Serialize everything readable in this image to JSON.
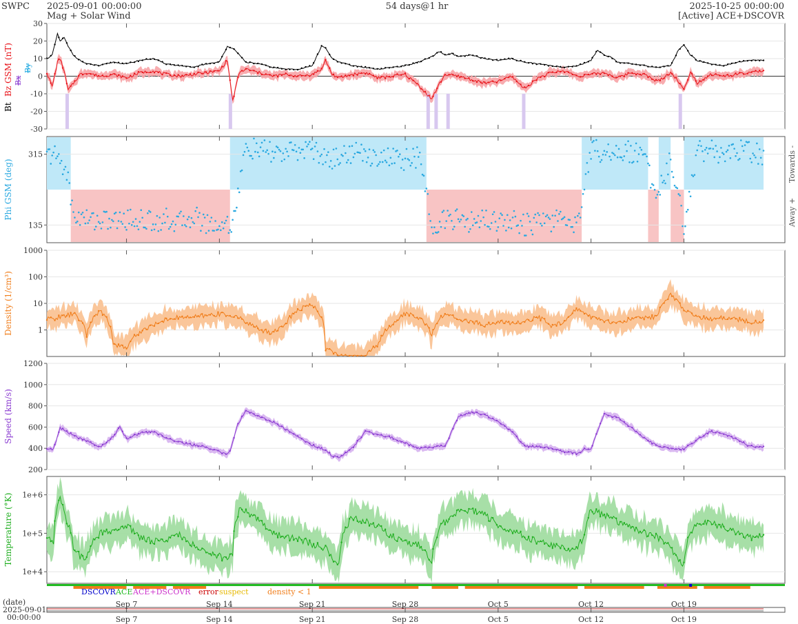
{
  "header": {
    "org": "SWPC",
    "start": "2025-09-01 00:00:00",
    "subtitle": "Mag + Solar Wind",
    "span": "54 days@1 hr",
    "end": "2025-10-25 00:00:00",
    "source": "[Active] ACE+DSCOVR"
  },
  "colors": {
    "bt": "#000000",
    "bz": "#e8141a",
    "bx": "#8a3bd1",
    "by": "#1aa7e0",
    "phi": "#29a8e0",
    "phi_away_fill": "#f8c4c4",
    "phi_towards_fill": "#bfe8f8",
    "density": "#f07d1a",
    "density_band": "#f9c08f",
    "speed": "#8a3bd1",
    "speed_band": "#d6b1ef",
    "temp": "#1fae1f",
    "temp_band": "#9ddc9d",
    "dscovr": "#0000cc",
    "ace": "#22bb22",
    "both": "#cc33cc",
    "error": "#cc0000",
    "suspect": "#e6b800",
    "low_density": "#f07d1a"
  },
  "x_axis": {
    "days": 54,
    "tick_days": [
      6,
      13,
      20,
      27,
      34,
      41,
      48
    ],
    "tick_labels": [
      "Sep 7",
      "Sep 14",
      "Sep 21",
      "Sep 28",
      "Oct 5",
      "Oct 12",
      "Oct 19"
    ],
    "date_label": "(date)",
    "date_start": "2025-09-01",
    "time_start": "00:00:00"
  },
  "source_legend": {
    "dscovr": "DSCOVR",
    "ace": "ACE",
    "both": "ACE+DSCOVR",
    "error": "error",
    "suspect": "suspect",
    "low_density": "density < 1"
  },
  "chart_data": [
    {
      "type": "line",
      "panel": "mag",
      "ylabel_parts": [
        "Bt",
        "Bz GSM (nT)",
        "Bx",
        "By"
      ],
      "ylim": [
        -30,
        30
      ],
      "yticks": [
        -30,
        -20,
        -10,
        0,
        10,
        20,
        30
      ],
      "series": [
        {
          "name": "Bt",
          "x_days": [
            0,
            0.4,
            0.8,
            1,
            1.3,
            1.6,
            2,
            2.5,
            3,
            4,
            5,
            6,
            7,
            8,
            9,
            10,
            11,
            12,
            13,
            13.6,
            14,
            14.5,
            15,
            16,
            17,
            18,
            19,
            20,
            20.7,
            21,
            21.5,
            22,
            23,
            24,
            25,
            26,
            27,
            28,
            29,
            29.6,
            30,
            30.5,
            31,
            32,
            33,
            34,
            35,
            36,
            37,
            38,
            39,
            40,
            41,
            41.5,
            42,
            42.5,
            43,
            44,
            45,
            46,
            47,
            47.6,
            48,
            48.5,
            49,
            50,
            51,
            52,
            53,
            54
          ],
          "values": [
            10,
            12,
            24,
            20,
            22,
            17,
            12,
            9,
            7,
            6,
            8,
            7,
            9,
            10,
            7,
            6,
            5,
            7,
            8,
            17,
            16,
            12,
            8,
            7,
            5,
            4,
            4,
            6,
            17,
            16,
            10,
            8,
            6,
            5,
            4,
            5,
            6,
            8,
            11,
            14,
            12,
            13,
            11,
            12,
            10,
            9,
            10,
            8,
            7,
            6,
            5,
            6,
            9,
            15,
            12,
            11,
            8,
            7,
            6,
            5,
            6,
            15,
            18,
            12,
            9,
            7,
            6,
            8,
            9,
            9
          ]
        },
        {
          "name": "Bz GSM",
          "x_days": [
            0,
            0.4,
            0.8,
            1,
            1.3,
            1.6,
            2,
            2.5,
            3,
            4,
            5,
            6,
            7,
            8,
            9,
            10,
            11,
            12,
            13,
            13.6,
            14,
            14.5,
            15,
            16,
            17,
            18,
            19,
            20,
            20.7,
            21,
            21.5,
            22,
            23,
            24,
            25,
            26,
            27,
            28,
            28.6,
            29,
            29.6,
            30,
            31,
            32,
            33,
            34,
            35,
            36,
            37,
            38,
            39,
            40,
            41,
            42,
            43,
            44,
            45,
            46,
            47,
            47.5,
            48,
            48.5,
            49,
            50,
            51,
            52,
            53,
            54
          ],
          "values": [
            2,
            -6,
            8,
            10,
            3,
            -8,
            -4,
            1,
            2,
            0,
            1,
            -1,
            2,
            3,
            1,
            0,
            1,
            2,
            3,
            9,
            -14,
            2,
            4,
            2,
            0,
            1,
            0,
            1,
            4,
            9,
            1,
            -1,
            1,
            2,
            -1,
            0,
            1,
            -5,
            -10,
            -13,
            -4,
            1,
            0,
            -2,
            -4,
            -3,
            0,
            -7,
            -1,
            2,
            3,
            0,
            1,
            2,
            -1,
            2,
            1,
            -3,
            2,
            -2,
            -8,
            3,
            -4,
            1,
            0,
            1,
            2,
            3
          ]
        }
      ]
    },
    {
      "type": "scatter",
      "panel": "phi",
      "ylabel": "Phi GSM (deg)",
      "ylim": [
        90,
        360
      ],
      "yticks": [
        135,
        315
      ],
      "side_labels": [
        "Towards -",
        "Away +"
      ],
      "sectors": [
        {
          "from_day": 0,
          "to_day": 1.8,
          "polarity": "towards"
        },
        {
          "from_day": 1.8,
          "to_day": 13.8,
          "polarity": "away"
        },
        {
          "from_day": 13.8,
          "to_day": 28.6,
          "polarity": "towards"
        },
        {
          "from_day": 28.6,
          "to_day": 40.3,
          "polarity": "away"
        },
        {
          "from_day": 40.3,
          "to_day": 45.3,
          "polarity": "towards"
        },
        {
          "from_day": 45.3,
          "to_day": 46.1,
          "polarity": "away"
        },
        {
          "from_day": 46.1,
          "to_day": 47.0,
          "polarity": "towards"
        },
        {
          "from_day": 47.0,
          "to_day": 48.0,
          "polarity": "away"
        },
        {
          "from_day": 48.0,
          "to_day": 54,
          "polarity": "towards"
        }
      ],
      "series": [
        {
          "name": "Phi GSM",
          "x_days": [
            0,
            0.5,
            1,
            1.5,
            2,
            3,
            4,
            5,
            6,
            7,
            8,
            9,
            10,
            11,
            12,
            13,
            14,
            15,
            16,
            17,
            18,
            19,
            20,
            21,
            22,
            23,
            24,
            25,
            26,
            27,
            28,
            29,
            30,
            31,
            32,
            33,
            34,
            35,
            36,
            37,
            38,
            39,
            40,
            41,
            42,
            43,
            44,
            45,
            46,
            47,
            48,
            49,
            50,
            51,
            52,
            53,
            54
          ],
          "values": [
            310,
            315,
            300,
            270,
            160,
            150,
            148,
            145,
            150,
            148,
            145,
            150,
            140,
            160,
            140,
            135,
            140,
            330,
            325,
            320,
            315,
            325,
            330,
            300,
            310,
            320,
            315,
            310,
            305,
            300,
            310,
            140,
            145,
            150,
            140,
            155,
            145,
            150,
            135,
            140,
            145,
            150,
            140,
            330,
            320,
            325,
            320,
            315,
            200,
            310,
            135,
            320,
            330,
            310,
            325,
            320,
            315
          ]
        }
      ]
    },
    {
      "type": "line",
      "panel": "density",
      "ylabel": "Density (1/cm³)",
      "yscale": "log",
      "ylim": [
        0.1,
        1000
      ],
      "yticks": [
        1,
        10,
        100,
        1000
      ],
      "ytick_labels": [
        "1",
        "10",
        "100",
        "1000"
      ],
      "series": [
        {
          "name": "Density",
          "x_days": [
            0,
            1,
            2,
            3,
            4,
            5,
            6,
            7,
            8,
            9,
            10,
            11,
            12,
            13,
            14,
            15,
            16,
            17,
            18,
            19,
            20,
            21,
            22,
            23,
            24,
            25,
            26,
            27,
            28,
            29,
            30,
            31,
            32,
            33,
            34,
            35,
            36,
            37,
            38,
            39,
            40,
            41,
            42,
            43,
            44,
            45,
            46,
            47,
            48,
            49,
            50,
            51,
            52,
            53,
            54
          ],
          "values": [
            2.5,
            3,
            4,
            0.6,
            5,
            0.3,
            0.2,
            0.8,
            1.5,
            2.5,
            3,
            3,
            3.5,
            4,
            3.5,
            2,
            1,
            0.8,
            1.5,
            6,
            9,
            0.2,
            0.1,
            0.1,
            0.1,
            0.3,
            1.5,
            4,
            3,
            0.5,
            4,
            2.5,
            2,
            1.5,
            2,
            1.8,
            2,
            3,
            1.5,
            2,
            6,
            3,
            2,
            2,
            2.5,
            3,
            3,
            20,
            5,
            3,
            2.5,
            3,
            2.5,
            2,
            2
          ]
        }
      ]
    },
    {
      "type": "line",
      "panel": "speed",
      "ylabel": "Speed (km/s)",
      "ylim": [
        200,
        1200
      ],
      "yticks": [
        200,
        400,
        600,
        800,
        1000,
        1200
      ],
      "series": [
        {
          "name": "Speed",
          "x_days": [
            0,
            0.5,
            1,
            1.5,
            2,
            3,
            4,
            5,
            5.5,
            6,
            7,
            8,
            9,
            10,
            11,
            12,
            13,
            13.5,
            13.8,
            14.3,
            15,
            16,
            17,
            18,
            19,
            20,
            21,
            21.5,
            22,
            23,
            24,
            25,
            26,
            27,
            28,
            29,
            29.5,
            30,
            31,
            32,
            33,
            34,
            35,
            36,
            37,
            38,
            39,
            40,
            40.5,
            41,
            42,
            43,
            44,
            45,
            46,
            47,
            48,
            49,
            50,
            51,
            52,
            53,
            54
          ],
          "values": [
            400,
            390,
            590,
            560,
            520,
            470,
            410,
            510,
            600,
            490,
            540,
            560,
            500,
            460,
            430,
            410,
            370,
            340,
            370,
            600,
            760,
            700,
            650,
            580,
            500,
            430,
            380,
            330,
            310,
            400,
            560,
            530,
            500,
            450,
            400,
            410,
            420,
            420,
            700,
            740,
            720,
            650,
            560,
            420,
            420,
            400,
            370,
            350,
            390,
            400,
            720,
            690,
            600,
            500,
            420,
            400,
            390,
            480,
            560,
            540,
            480,
            420,
            410
          ]
        }
      ]
    },
    {
      "type": "line",
      "panel": "temperature",
      "ylabel": "Temperature (°K)",
      "yscale": "log",
      "ylim": [
        5000,
        3000000
      ],
      "yticks": [
        10000,
        100000,
        1000000
      ],
      "ytick_labels": [
        "1e+4",
        "1e+5",
        "1e+6"
      ],
      "series": [
        {
          "name": "Temperature",
          "x_days": [
            0,
            0.5,
            1,
            1.5,
            2,
            2.5,
            3,
            4,
            5,
            6,
            7,
            8,
            9,
            10,
            11,
            12,
            13,
            13.5,
            14,
            14.5,
            15,
            16,
            17,
            18,
            19,
            20,
            21,
            21.5,
            22,
            23,
            24,
            25,
            26,
            27,
            28,
            28.5,
            29,
            30,
            31,
            32,
            33,
            34,
            35,
            36,
            37,
            38,
            39,
            40,
            40.5,
            41,
            42,
            43,
            44,
            45,
            46,
            47,
            47.5,
            48,
            49,
            50,
            51,
            52,
            53,
            54
          ],
          "values": [
            80000,
            50000,
            800000,
            200000,
            40000,
            25000,
            20000,
            100000,
            120000,
            150000,
            80000,
            60000,
            70000,
            90000,
            50000,
            30000,
            25000,
            20000,
            30000,
            400000,
            350000,
            200000,
            100000,
            80000,
            70000,
            50000,
            40000,
            20000,
            15000,
            250000,
            200000,
            150000,
            80000,
            60000,
            50000,
            30000,
            20000,
            200000,
            350000,
            400000,
            300000,
            150000,
            120000,
            80000,
            60000,
            50000,
            40000,
            40000,
            80000,
            400000,
            300000,
            200000,
            150000,
            100000,
            80000,
            40000,
            20000,
            15000,
            200000,
            180000,
            150000,
            100000,
            80000,
            80000
          ]
        }
      ]
    }
  ]
}
